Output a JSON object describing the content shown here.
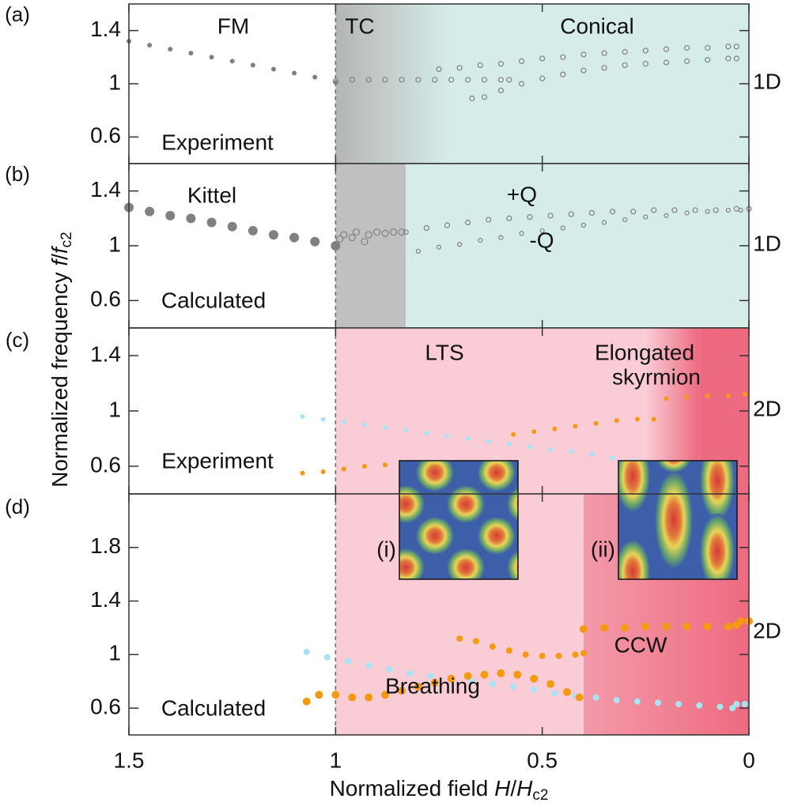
{
  "figure": {
    "ylabel": [
      "Normalized frequency ",
      "f",
      "/",
      "f",
      "c2"
    ],
    "xlabel": [
      "Normalized field ",
      "H",
      "/",
      "H",
      "c2"
    ]
  },
  "chart_data": [
    {
      "type": "scatter",
      "panel_label": "(a)",
      "xlim": [
        1.5,
        0
      ],
      "xticks": [
        1.5,
        1,
        0.5,
        0
      ],
      "ylim": [
        0.4,
        1.6
      ],
      "yticks": [
        0.6,
        1,
        1.4
      ],
      "vline": 1,
      "regions": [
        {
          "from": 1,
          "to": 0.72,
          "color": "#b5b5b5",
          "color2": "#d6ece9"
        },
        {
          "from": 0.72,
          "to": 0,
          "color": "#d6ece9"
        }
      ],
      "annotations": [
        {
          "text": "FM",
          "color": "#111"
        },
        {
          "text": "TC",
          "color": "#111"
        },
        {
          "text": "Conical",
          "color": "#111"
        },
        {
          "text": "Experiment",
          "color": "#111"
        },
        {
          "text": "1D",
          "color": "#111"
        }
      ],
      "series": [
        {
          "color": "#808080",
          "marker": "filled",
          "size": 3,
          "x": [
            1.5,
            1.45,
            1.4,
            1.35,
            1.3,
            1.25,
            1.2,
            1.15,
            1.1,
            1.05,
            1.0
          ],
          "values": [
            1.32,
            1.29,
            1.26,
            1.23,
            1.2,
            1.17,
            1.14,
            1.11,
            1.08,
            1.05,
            1.01
          ]
        },
        {
          "color": "#808080",
          "marker": "open",
          "size": 3,
          "x": [
            1.0,
            0.96,
            0.92,
            0.88,
            0.84,
            0.8,
            0.76,
            0.72,
            0.68,
            0.64,
            0.6,
            0.58
          ],
          "values": [
            1.02,
            1.03,
            1.03,
            1.03,
            1.03,
            1.03,
            1.03,
            1.03,
            1.03,
            1.03,
            1.03,
            1.03
          ]
        },
        {
          "color": "#808080",
          "marker": "open",
          "size": 3,
          "x": [
            0.75,
            0.7,
            0.65,
            0.6,
            0.55,
            0.5,
            0.45,
            0.4,
            0.35,
            0.3,
            0.25,
            0.2,
            0.15,
            0.1,
            0.05,
            0.03
          ],
          "values": [
            1.11,
            1.12,
            1.14,
            1.15,
            1.17,
            1.19,
            1.2,
            1.22,
            1.23,
            1.24,
            1.25,
            1.26,
            1.27,
            1.27,
            1.28,
            1.28
          ]
        },
        {
          "color": "#808080",
          "marker": "open",
          "size": 3,
          "x": [
            0.67,
            0.64,
            0.6,
            0.55,
            0.5,
            0.45,
            0.4,
            0.35,
            0.3,
            0.25,
            0.2,
            0.15,
            0.1,
            0.05,
            0.03
          ],
          "values": [
            0.89,
            0.9,
            0.95,
            1.0,
            1.04,
            1.07,
            1.1,
            1.12,
            1.14,
            1.15,
            1.16,
            1.17,
            1.18,
            1.19,
            1.19
          ]
        }
      ]
    },
    {
      "type": "scatter",
      "panel_label": "(b)",
      "xlim": [
        1.5,
        0
      ],
      "xticks": [
        1.5,
        1,
        0.5,
        0
      ],
      "ylim": [
        0.4,
        1.6
      ],
      "yticks": [
        0.6,
        1,
        1.4
      ],
      "vline": 1,
      "regions": [
        {
          "from": 1,
          "to": 0.83,
          "color": "#c0c0c0"
        },
        {
          "from": 0.83,
          "to": 0,
          "color": "#d6ece9"
        }
      ],
      "annotations": [
        {
          "text": "Kittel",
          "color": "#808080"
        },
        {
          "text": "+Q",
          "color": "#808080"
        },
        {
          "text": "-Q",
          "color": "#808080"
        },
        {
          "text": "Calculated",
          "color": "#111"
        },
        {
          "text": "1D",
          "color": "#111"
        }
      ],
      "series": [
        {
          "color": "#808080",
          "marker": "filled",
          "size": 6,
          "x": [
            1.5,
            1.45,
            1.4,
            1.35,
            1.3,
            1.25,
            1.2,
            1.15,
            1.1,
            1.05,
            1.0
          ],
          "values": [
            1.28,
            1.25,
            1.22,
            1.2,
            1.17,
            1.14,
            1.11,
            1.08,
            1.06,
            1.03,
            1.0
          ]
        },
        {
          "color": "#808080",
          "marker": "open",
          "size": 4,
          "x": [
            0.99,
            0.98,
            0.96,
            0.95,
            0.93,
            0.92,
            0.9,
            0.88,
            0.86,
            0.84
          ],
          "values": [
            1.05,
            1.08,
            1.06,
            1.1,
            1.03,
            1.08,
            1.1,
            1.09,
            1.1,
            1.1
          ]
        },
        {
          "color": "#808080",
          "marker": "open",
          "size": 3,
          "x": [
            0.83,
            0.78,
            0.73,
            0.68,
            0.63,
            0.58,
            0.53,
            0.48,
            0.43,
            0.38,
            0.33,
            0.28,
            0.23,
            0.18,
            0.13,
            0.08,
            0.03,
            0
          ],
          "values": [
            1.1,
            1.13,
            1.15,
            1.17,
            1.19,
            1.2,
            1.21,
            1.22,
            1.23,
            1.24,
            1.25,
            1.25,
            1.26,
            1.26,
            1.26,
            1.26,
            1.27,
            1.27
          ]
        },
        {
          "color": "#808080",
          "marker": "open",
          "size": 2.5,
          "x": [
            0.8,
            0.75,
            0.7,
            0.65,
            0.6,
            0.55,
            0.5,
            0.45,
            0.4,
            0.35,
            0.3,
            0.25,
            0.2,
            0.15,
            0.1,
            0.05,
            0.02
          ],
          "values": [
            0.96,
            0.99,
            1.01,
            1.04,
            1.06,
            1.09,
            1.11,
            1.13,
            1.15,
            1.17,
            1.19,
            1.21,
            1.22,
            1.24,
            1.25,
            1.26,
            1.26
          ]
        }
      ]
    },
    {
      "type": "scatter",
      "panel_label": "(c)",
      "xlim": [
        1.5,
        0
      ],
      "xticks": [
        1.5,
        1,
        0.5,
        0
      ],
      "ylim": [
        0.4,
        1.6
      ],
      "yticks": [
        0.6,
        1,
        1.4
      ],
      "vline": 1,
      "regions": [
        {
          "from": 1,
          "to": 0.25,
          "color": "#f9ccd6"
        },
        {
          "from": 0.25,
          "to": 0.12,
          "color": "#f9ccd6",
          "color2": "#ee6a80"
        },
        {
          "from": 0.12,
          "to": 0,
          "color": "#ee6a80"
        }
      ],
      "annotations": [
        {
          "text": "LTS",
          "color": "#111"
        },
        {
          "text": "Elongated",
          "color": "#111"
        },
        {
          "text": "skyrmion",
          "color": "#111"
        },
        {
          "text": "Experiment",
          "color": "#111"
        },
        {
          "text": "2D",
          "color": "#111"
        }
      ],
      "series": [
        {
          "color": "#a9e4f5",
          "marker": "filled",
          "size": 3,
          "x": [
            1.08,
            1.03,
            0.98,
            0.93,
            0.88,
            0.83,
            0.78,
            0.73,
            0.68,
            0.63,
            0.58,
            0.53,
            0.48,
            0.43,
            0.38,
            0.33,
            0.28,
            0.23,
            0.18,
            0.13,
            0.12
          ],
          "values": [
            0.96,
            0.94,
            0.92,
            0.9,
            0.88,
            0.86,
            0.84,
            0.82,
            0.8,
            0.78,
            0.76,
            0.74,
            0.72,
            0.71,
            0.69,
            0.66,
            0.64,
            0.62,
            0.59,
            0.57,
            0.56
          ]
        },
        {
          "color": "#f39a12",
          "marker": "filled",
          "size": 3,
          "x": [
            1.08,
            1.03,
            0.98,
            0.93,
            0.88,
            0.83,
            0.78,
            0.73,
            0.68,
            0.63,
            0.58
          ],
          "values": [
            0.55,
            0.56,
            0.58,
            0.6,
            0.61,
            0.61,
            0.61,
            0.61,
            0.62,
            0.62,
            0.63
          ]
        },
        {
          "color": "#f39a12",
          "marker": "filled",
          "size": 3,
          "x": [
            0.57,
            0.52,
            0.47,
            0.42,
            0.37,
            0.32,
            0.27,
            0.23
          ],
          "values": [
            0.83,
            0.85,
            0.87,
            0.89,
            0.91,
            0.93,
            0.94,
            0.94
          ]
        },
        {
          "color": "#f39a12",
          "marker": "filled",
          "size": 3,
          "x": [
            0.2,
            0.15,
            0.1,
            0.05,
            0.01
          ],
          "values": [
            1.09,
            1.1,
            1.11,
            1.11,
            1.12
          ]
        }
      ]
    },
    {
      "type": "scatter",
      "panel_label": "(d)",
      "xlim": [
        1.5,
        0
      ],
      "xticks": [
        1.5,
        1,
        0.5,
        0
      ],
      "ylim": [
        0.4,
        2.2
      ],
      "yticks": [
        0.6,
        1,
        1.4,
        1.8
      ],
      "vline": 1,
      "regions": [
        {
          "from": 1,
          "to": 0.4,
          "color": "#f9ccd6"
        },
        {
          "from": 0.4,
          "to": 0,
          "color": "#f39aaa",
          "color2": "#ee6a80"
        }
      ],
      "annotations": [
        {
          "text": "Calculated",
          "color": "#111"
        },
        {
          "text": "Breathing",
          "color": "#f39a12"
        },
        {
          "text": "CCW",
          "color": "#29abe2"
        },
        {
          "text": "2D",
          "color": "#111"
        }
      ],
      "insets": [
        {
          "label": "(i)"
        },
        {
          "label": "(ii)"
        }
      ],
      "series": [
        {
          "color": "#a9e4f5",
          "marker": "filled",
          "size": 4,
          "x": [
            1.07,
            1.02,
            0.97,
            0.92,
            0.87,
            0.82,
            0.77,
            0.72,
            0.67,
            0.62,
            0.57,
            0.52,
            0.47,
            0.42,
            0.37,
            0.32,
            0.27,
            0.22,
            0.17,
            0.12,
            0.07,
            0.04,
            0.03,
            0.01
          ],
          "values": [
            1.02,
            0.98,
            0.95,
            0.92,
            0.89,
            0.86,
            0.84,
            0.82,
            0.8,
            0.78,
            0.76,
            0.74,
            0.71,
            0.69,
            0.68,
            0.66,
            0.65,
            0.64,
            0.63,
            0.62,
            0.61,
            0.6,
            0.63,
            0.63
          ]
        },
        {
          "color": "#f39a12",
          "marker": "filled",
          "size": 5,
          "x": [
            1.07,
            1.04,
            1.0,
            0.96,
            0.92,
            0.88,
            0.84,
            0.8,
            0.76,
            0.72,
            0.68,
            0.64,
            0.6,
            0.56,
            0.52,
            0.48,
            0.44,
            0.41
          ],
          "values": [
            0.65,
            0.7,
            0.7,
            0.68,
            0.68,
            0.7,
            0.73,
            0.76,
            0.79,
            0.82,
            0.84,
            0.85,
            0.86,
            0.85,
            0.82,
            0.78,
            0.72,
            0.68
          ]
        },
        {
          "color": "#f39a12",
          "marker": "filled",
          "size": 4,
          "x": [
            0.7,
            0.66,
            0.62,
            0.58,
            0.54,
            0.5,
            0.46,
            0.42,
            0.4
          ],
          "values": [
            1.12,
            1.1,
            1.06,
            1.03,
            1.0,
            0.99,
            0.99,
            1.0,
            1.01
          ]
        },
        {
          "color": "#f39a12",
          "marker": "filled",
          "size": 5,
          "x": [
            0.4,
            0.35,
            0.3,
            0.25,
            0.2,
            0.15,
            0.1,
            0.05,
            0.03,
            0.02,
            0
          ],
          "values": [
            1.19,
            1.2,
            1.2,
            1.21,
            1.21,
            1.21,
            1.21,
            1.21,
            1.22,
            1.25,
            1.25
          ]
        }
      ]
    }
  ]
}
